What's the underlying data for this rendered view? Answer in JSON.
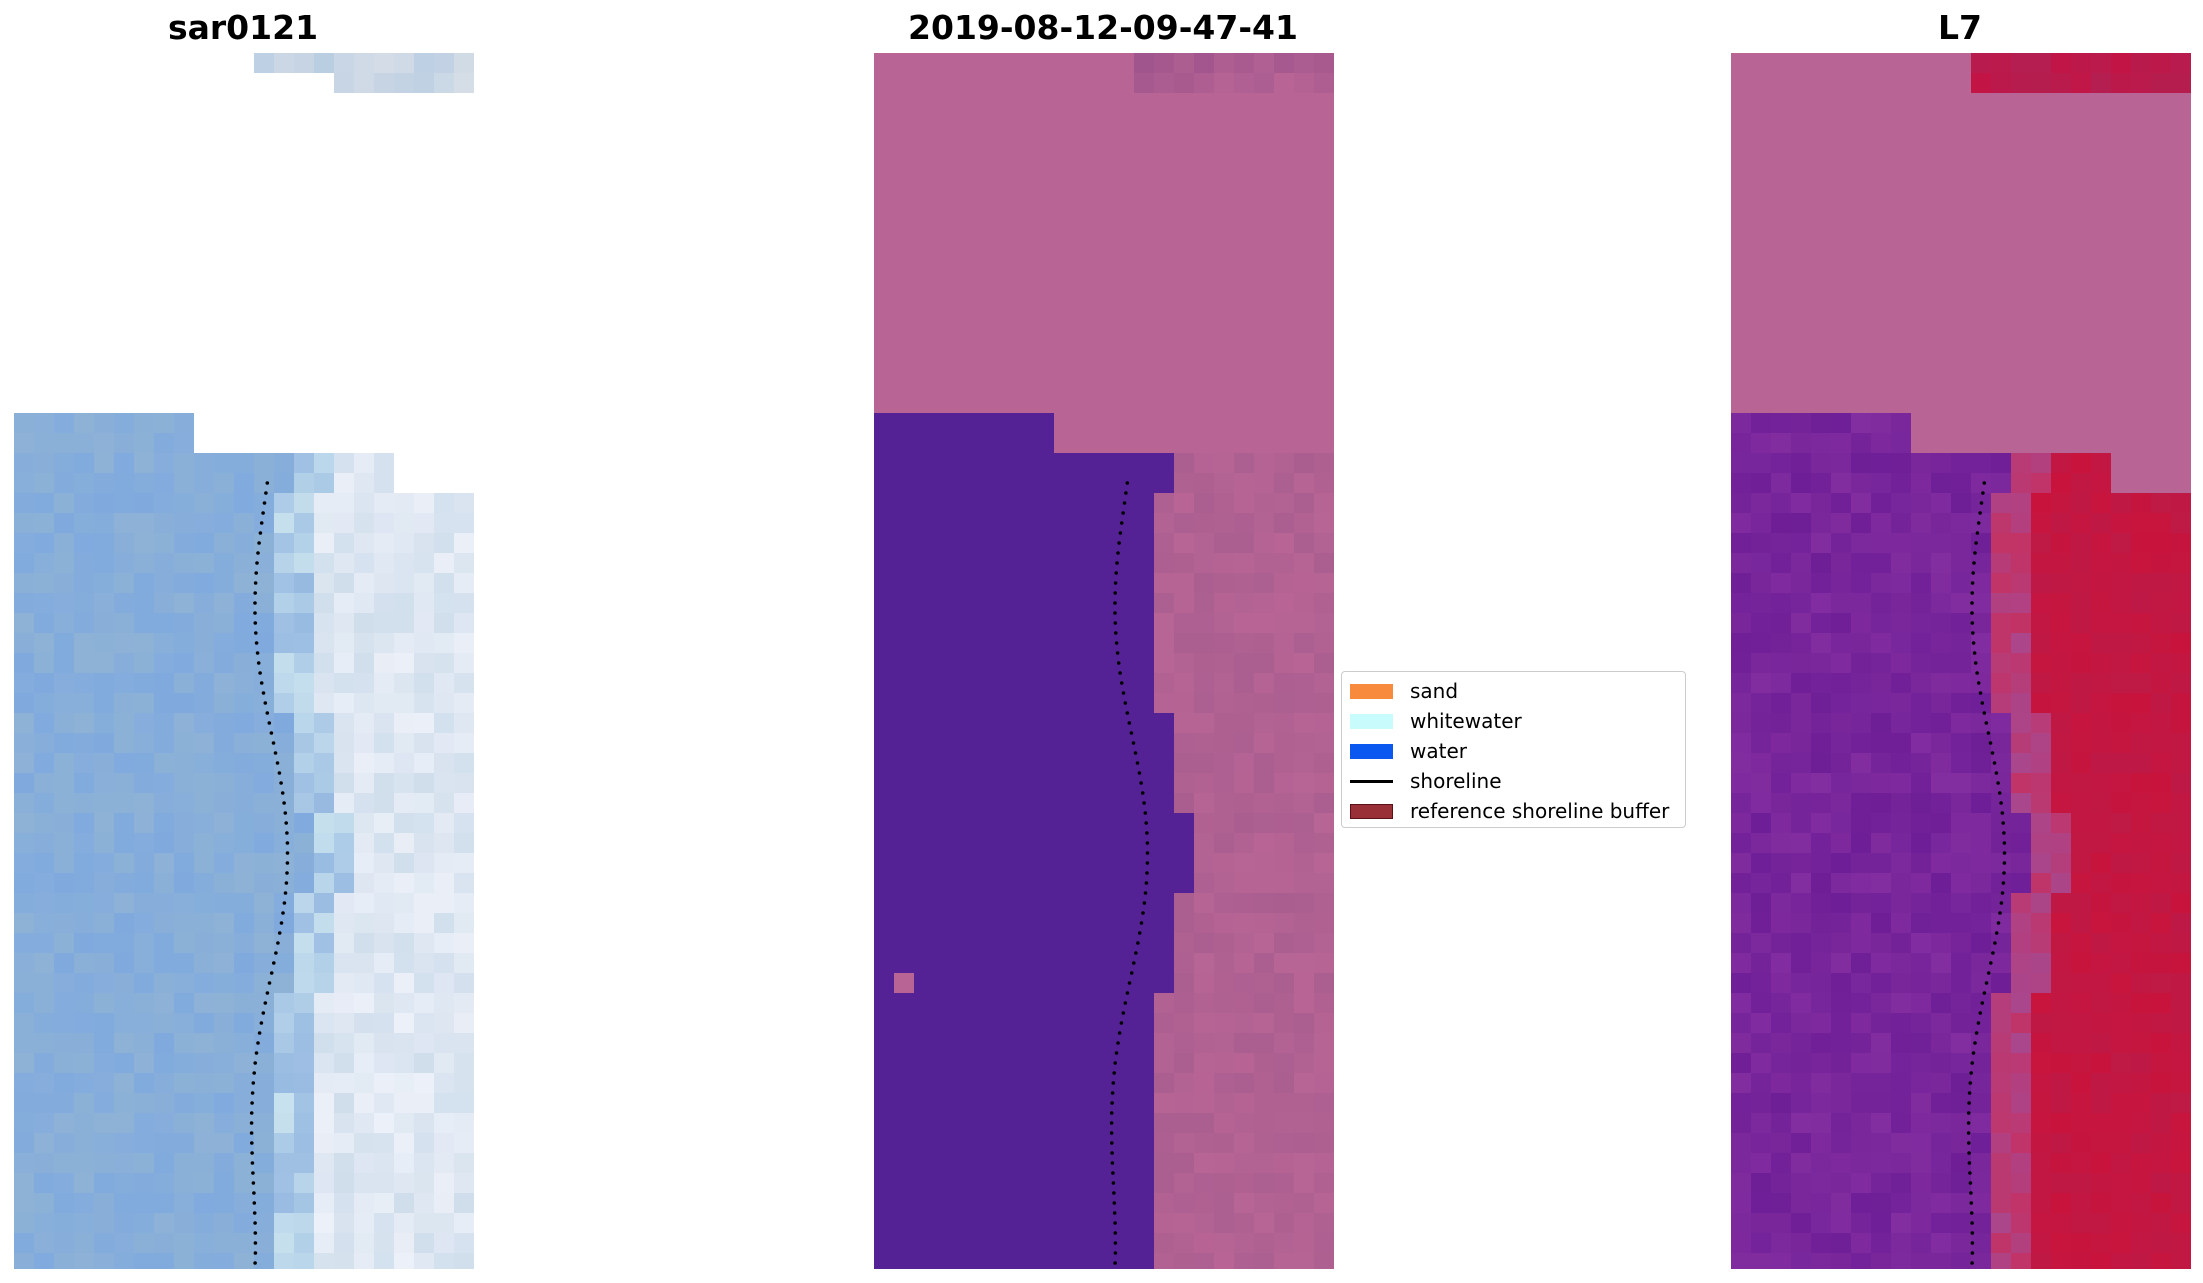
{
  "panels": [
    {
      "title": "sar0121",
      "palette": "rgb"
    },
    {
      "title": "2019-08-12-09-47-41",
      "palette": "classified"
    },
    {
      "title": "L7",
      "palette": "index"
    }
  ],
  "legend": {
    "items": [
      {
        "label": "sand",
        "color": "#f78a3c",
        "kind": "patch"
      },
      {
        "label": "whitewater",
        "color": "#c8fcfc",
        "kind": "patch"
      },
      {
        "label": "water",
        "color": "#0b58f0",
        "kind": "patch"
      },
      {
        "label": "shoreline",
        "color": "#000000",
        "kind": "line"
      },
      {
        "label": "reference shoreline buffer",
        "color": "#9a3037",
        "kind": "patch"
      }
    ]
  },
  "colors": {
    "background": "#ffffff",
    "classified_water": "#542295",
    "classified_land": "#b86595",
    "index_land": "#b86595",
    "index_water": "#7a2aa0",
    "index_sand": "#c01a4a"
  }
}
